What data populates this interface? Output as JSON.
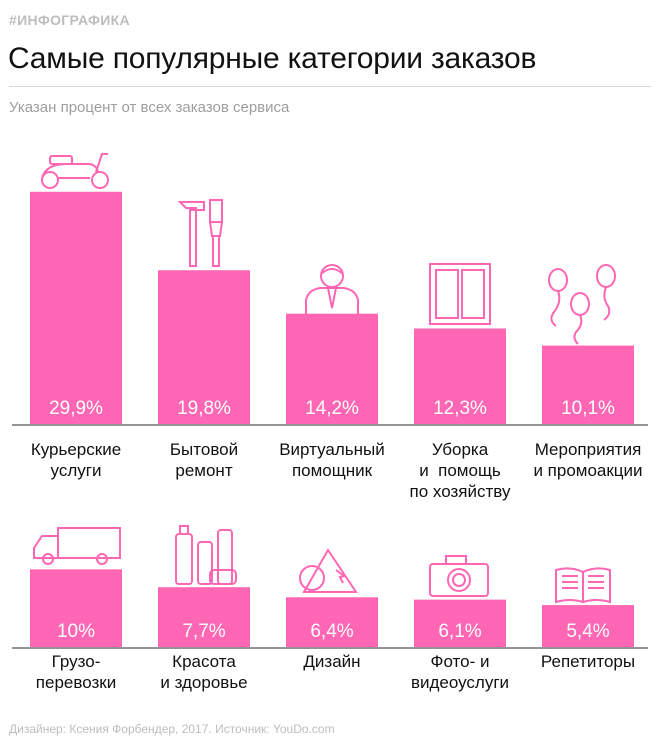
{
  "header": {
    "tag": "#ИНФОГРАФИКА",
    "title": "Самые популярные категории заказов",
    "subtitle": "Указан процент от всех заказов сервиса"
  },
  "footer": {
    "credit": "Дизайнер: Ксения Форбендер, 2017. Источник: YouDo.com"
  },
  "colors": {
    "bar": "#ff66b3",
    "value_label": "#ffffff",
    "baseline": "#555555",
    "icon_stroke": "#ff66b3"
  },
  "chart_data": [
    {
      "type": "bar",
      "categories": [
        "Курьерские\nуслуги",
        "Бытовой\nремонт",
        "Виртуальный\nпомощник",
        "Уборка\nи  помощь\nпо хозяйству",
        "Мероприятия\nи промоакции"
      ],
      "values": [
        29.9,
        19.8,
        14.2,
        12.3,
        10.1
      ],
      "value_labels": [
        "29,9%",
        "19,8%",
        "14,2%",
        "12,3%",
        "10,1%"
      ],
      "icons": [
        "scooter-icon",
        "tools-icon",
        "assistant-icon",
        "window-icon",
        "balloons-icon"
      ],
      "ylim": [
        0,
        30
      ]
    },
    {
      "type": "bar",
      "categories": [
        "Грузо-\nперевозки",
        "Красота\nи здоровье",
        "Дизайн",
        "Фото- и\nвидеоуслуги",
        "Репетиторы"
      ],
      "values": [
        10,
        7.7,
        6.4,
        6.1,
        5.4
      ],
      "value_labels": [
        "10%",
        "7,7%",
        "6,4%",
        "6,1%",
        "5,4%"
      ],
      "icons": [
        "truck-icon",
        "cosmetics-icon",
        "design-shapes-icon",
        "camera-icon",
        "book-icon"
      ],
      "ylim": [
        0,
        30
      ]
    }
  ]
}
